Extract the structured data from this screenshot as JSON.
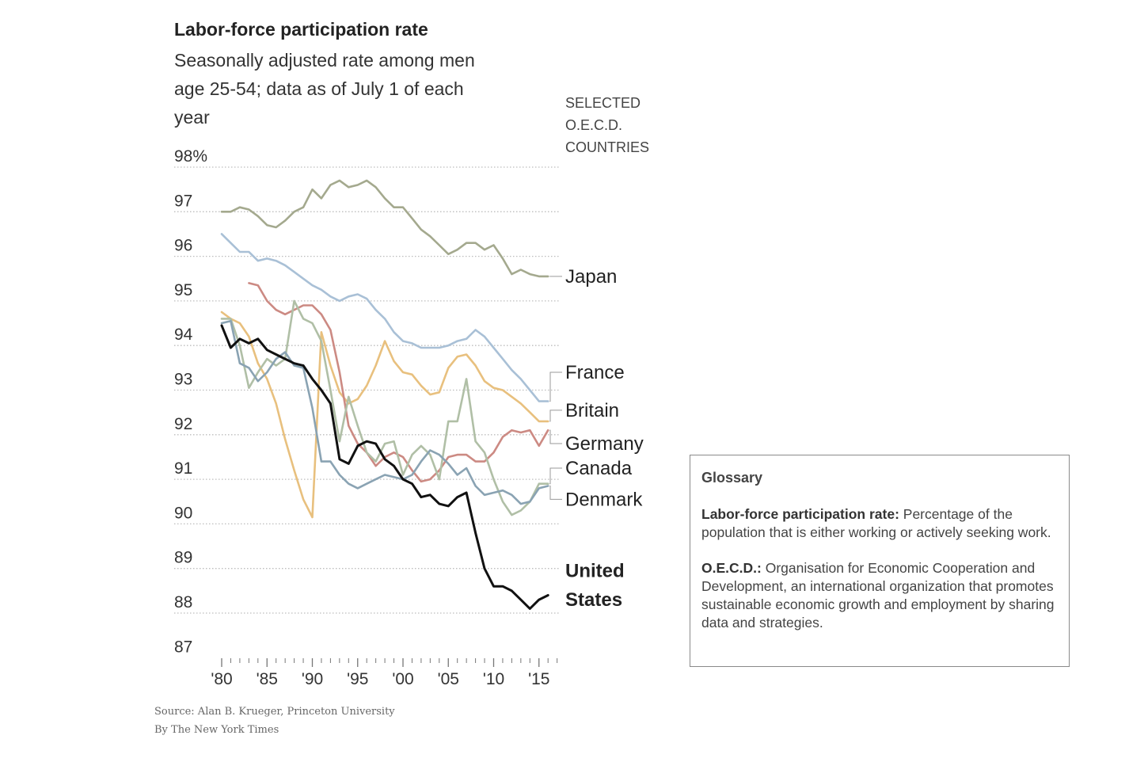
{
  "header": {
    "title": "Labor-force participation rate",
    "subtitle": "Seasonally adjusted rate among men age 25-54; data as of July 1 of each year",
    "countries_label": "SELECTED O.E.C.D. COUNTRIES"
  },
  "chart_data": {
    "type": "line",
    "title": "Labor-force participation rate",
    "subtitle": "Seasonally adjusted rate among men age 25-54; data as of July 1 of each year",
    "xlabel": "",
    "ylabel": "",
    "xlim": [
      1980,
      2017
    ],
    "ylim": [
      87,
      98
    ],
    "y_ticks": [
      98,
      97,
      96,
      95,
      94,
      93,
      92,
      91,
      90,
      89,
      88,
      87
    ],
    "y_tick_labels": [
      "98%",
      "97",
      "96",
      "95",
      "94",
      "93",
      "92",
      "91",
      "90",
      "89",
      "88",
      "87"
    ],
    "x_ticks": [
      1980,
      1985,
      1990,
      1995,
      2000,
      2005,
      2010,
      2015
    ],
    "x_tick_labels": [
      "'80",
      "'85",
      "'90",
      "'95",
      "'00",
      "'05",
      "'10",
      "'15"
    ],
    "grid": true,
    "legend": "direct labels at right",
    "series": [
      {
        "name": "Japan",
        "color": "#a4a98e",
        "bold": false,
        "x": [
          1980,
          1981,
          1982,
          1983,
          1984,
          1985,
          1986,
          1987,
          1988,
          1989,
          1990,
          1991,
          1992,
          1993,
          1994,
          1995,
          1996,
          1997,
          1998,
          1999,
          2000,
          2001,
          2002,
          2003,
          2004,
          2005,
          2006,
          2007,
          2008,
          2009,
          2010,
          2011,
          2012,
          2013,
          2014,
          2015,
          2016
        ],
        "y": [
          97.0,
          97.0,
          97.1,
          97.05,
          96.9,
          96.7,
          96.65,
          96.8,
          97.0,
          97.1,
          97.5,
          97.3,
          97.6,
          97.7,
          97.55,
          97.6,
          97.7,
          97.55,
          97.3,
          97.1,
          97.1,
          96.85,
          96.6,
          96.45,
          96.25,
          96.05,
          96.15,
          96.3,
          96.3,
          96.15,
          96.25,
          95.95,
          95.6,
          95.7,
          95.6,
          95.55,
          95.55
        ]
      },
      {
        "name": "France",
        "color": "#a9c0d6",
        "bold": false,
        "x": [
          1980,
          1981,
          1982,
          1983,
          1984,
          1985,
          1986,
          1987,
          1988,
          1989,
          1990,
          1991,
          1992,
          1993,
          1994,
          1995,
          1996,
          1997,
          1998,
          1999,
          2000,
          2001,
          2002,
          2003,
          2004,
          2005,
          2006,
          2007,
          2008,
          2009,
          2010,
          2011,
          2012,
          2013,
          2014,
          2015,
          2016
        ],
        "y": [
          96.5,
          96.3,
          96.1,
          96.1,
          95.9,
          95.95,
          95.9,
          95.8,
          95.65,
          95.5,
          95.35,
          95.25,
          95.1,
          95.0,
          95.1,
          95.15,
          95.05,
          94.8,
          94.6,
          94.3,
          94.1,
          94.05,
          93.95,
          93.95,
          93.95,
          94.0,
          94.1,
          94.15,
          94.35,
          94.2,
          93.95,
          93.7,
          93.45,
          93.25,
          93.0,
          92.75,
          92.75
        ]
      },
      {
        "name": "Britain",
        "color": "#e8c07e",
        "bold": false,
        "x": [
          1980,
          1981,
          1982,
          1983,
          1984,
          1985,
          1986,
          1987,
          1988,
          1989,
          1990,
          1991,
          1992,
          1993,
          1994,
          1995,
          1996,
          1997,
          1998,
          1999,
          2000,
          2001,
          2002,
          2003,
          2004,
          2005,
          2006,
          2007,
          2008,
          2009,
          2010,
          2011,
          2012,
          2013,
          2014,
          2015,
          2016
        ],
        "y": [
          94.75,
          94.6,
          94.5,
          94.2,
          93.6,
          93.25,
          92.7,
          91.9,
          91.2,
          90.55,
          90.15,
          94.3,
          93.55,
          92.95,
          92.7,
          92.8,
          93.1,
          93.55,
          94.1,
          93.65,
          93.4,
          93.35,
          93.1,
          92.9,
          92.95,
          93.5,
          93.75,
          93.8,
          93.55,
          93.2,
          93.05,
          93.0,
          92.85,
          92.7,
          92.5,
          92.3,
          92.3
        ]
      },
      {
        "name": "Germany",
        "color": "#cc8a83",
        "bold": false,
        "x": [
          1983,
          1984,
          1985,
          1986,
          1987,
          1988,
          1989,
          1990,
          1991,
          1992,
          1993,
          1994,
          1995,
          1996,
          1997,
          1998,
          1999,
          2000,
          2001,
          2002,
          2003,
          2004,
          2005,
          2006,
          2007,
          2008,
          2009,
          2010,
          2011,
          2012,
          2013,
          2014,
          2015,
          2016
        ],
        "y": [
          95.4,
          95.35,
          95.0,
          94.8,
          94.7,
          94.8,
          94.9,
          94.9,
          94.7,
          94.35,
          93.4,
          92.2,
          91.8,
          91.6,
          91.3,
          91.5,
          91.6,
          91.5,
          91.2,
          90.95,
          91.0,
          91.2,
          91.5,
          91.55,
          91.55,
          91.4,
          91.4,
          91.6,
          91.95,
          92.1,
          92.05,
          92.1,
          91.75,
          92.1
        ]
      },
      {
        "name": "Canada",
        "color": "#b0bfa6",
        "bold": false,
        "x": [
          1980,
          1981,
          1982,
          1983,
          1984,
          1985,
          1986,
          1987,
          1988,
          1989,
          1990,
          1991,
          1992,
          1993,
          1994,
          1995,
          1996,
          1997,
          1998,
          1999,
          2000,
          2001,
          2002,
          2003,
          2004,
          2005,
          2006,
          2007,
          2008,
          2009,
          2010,
          2011,
          2012,
          2013,
          2014,
          2015,
          2016
        ],
        "y": [
          94.6,
          94.6,
          94.0,
          93.05,
          93.4,
          93.7,
          93.55,
          93.7,
          95.0,
          94.6,
          94.5,
          94.1,
          93.0,
          91.85,
          92.85,
          92.2,
          91.6,
          91.4,
          91.8,
          91.85,
          91.1,
          91.55,
          91.75,
          91.55,
          91.0,
          92.3,
          92.3,
          93.25,
          91.85,
          91.6,
          91.0,
          90.5,
          90.2,
          90.3,
          90.5,
          90.9,
          90.9
        ]
      },
      {
        "name": "Denmark",
        "color": "#8aa3b3",
        "bold": false,
        "x": [
          1980,
          1981,
          1982,
          1983,
          1984,
          1985,
          1986,
          1987,
          1988,
          1989,
          1990,
          1991,
          1992,
          1993,
          1994,
          1995,
          1996,
          1997,
          1998,
          1999,
          2000,
          2001,
          2002,
          2003,
          2004,
          2005,
          2006,
          2007,
          2008,
          2009,
          2010,
          2011,
          2012,
          2013,
          2014,
          2015,
          2016
        ],
        "y": [
          94.5,
          94.55,
          93.6,
          93.5,
          93.2,
          93.4,
          93.7,
          93.85,
          93.55,
          93.5,
          92.6,
          91.4,
          91.4,
          91.1,
          90.9,
          90.8,
          90.9,
          91.0,
          91.1,
          91.05,
          91.0,
          91.1,
          91.4,
          91.65,
          91.55,
          91.35,
          91.1,
          91.25,
          90.85,
          90.65,
          90.7,
          90.75,
          90.65,
          90.45,
          90.5,
          90.8,
          90.85
        ]
      },
      {
        "name": "United States",
        "color": "#111111",
        "bold": true,
        "x": [
          1980,
          1981,
          1982,
          1983,
          1984,
          1985,
          1986,
          1987,
          1988,
          1989,
          1990,
          1991,
          1992,
          1993,
          1994,
          1995,
          1996,
          1997,
          1998,
          1999,
          2000,
          2001,
          2002,
          2003,
          2004,
          2005,
          2006,
          2007,
          2008,
          2009,
          2010,
          2011,
          2012,
          2013,
          2014,
          2015,
          2016
        ],
        "y": [
          94.45,
          93.95,
          94.15,
          94.05,
          94.15,
          93.9,
          93.8,
          93.7,
          93.6,
          93.55,
          93.25,
          93.0,
          92.7,
          91.45,
          91.35,
          91.75,
          91.85,
          91.8,
          91.45,
          91.3,
          91.0,
          90.9,
          90.6,
          90.65,
          90.45,
          90.4,
          90.6,
          90.7,
          89.8,
          89.0,
          88.6,
          88.6,
          88.5,
          88.3,
          88.1,
          88.3,
          88.4
        ]
      }
    ],
    "series_labels": [
      {
        "text": "Japan",
        "y": 95.55,
        "bold": false
      },
      {
        "text": "France",
        "y": 93.4,
        "bold": false
      },
      {
        "text": "Britain",
        "y": 92.55,
        "bold": false
      },
      {
        "text": "Germany",
        "y": 91.8,
        "bold": false
      },
      {
        "text": "Canada",
        "y": 91.25,
        "bold": false
      },
      {
        "text": "Denmark",
        "y": 90.55,
        "bold": false
      },
      {
        "text": "United",
        "y": 88.95,
        "bold": true
      },
      {
        "text": "States",
        "y": 88.3,
        "bold": true
      }
    ]
  },
  "footer": {
    "source": "Source: Alan B. Krueger, Princeton University",
    "byline": "By The New York Times"
  },
  "glossary": {
    "heading": "Glossary",
    "entries": [
      {
        "term": "Labor-force participation rate:",
        "definition": " Percentage of the population that is either working or actively seeking work."
      },
      {
        "term": "O.E.C.D.:",
        "definition": " Organisation for Economic Cooperation and Development, an international organization that promotes sustainable economic growth and employment by sharing data and strategies."
      }
    ]
  }
}
